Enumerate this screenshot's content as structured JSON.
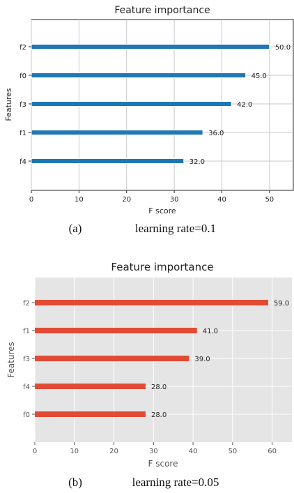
{
  "chart_data": [
    {
      "type": "bar",
      "orientation": "horizontal",
      "title": "Feature importance",
      "xlabel": "F score",
      "ylabel": "Features",
      "categories": [
        "f2",
        "f0",
        "f3",
        "f1",
        "f4"
      ],
      "values": [
        50,
        45,
        42,
        36,
        32
      ],
      "value_labels": [
        "50.0",
        "45.0",
        "42.0",
        "36.0",
        "32.0"
      ],
      "xlim": [
        0,
        55
      ],
      "xticks": [
        "0",
        "10",
        "20",
        "30",
        "40",
        "50"
      ],
      "grid": true,
      "bar_color": "#1f77b4",
      "caption_letter": "(a)",
      "caption_text": "learning rate=0.1"
    },
    {
      "type": "bar",
      "orientation": "horizontal",
      "title": "Feature importance",
      "xlabel": "F score",
      "ylabel": "Features",
      "categories": [
        "f2",
        "f1",
        "f3",
        "f4",
        "f0"
      ],
      "values": [
        59,
        41,
        39,
        28,
        28
      ],
      "value_labels": [
        "59.0",
        "41.0",
        "39.0",
        "28.0",
        "28.0"
      ],
      "xlim": [
        0,
        65
      ],
      "xticks": [
        "0",
        "10",
        "20",
        "30",
        "40",
        "50",
        "60"
      ],
      "grid": true,
      "bar_color": "#e24a33",
      "background": "#e5e5e5",
      "caption_letter": "(b)",
      "caption_text": "learning rate=0.05"
    }
  ]
}
